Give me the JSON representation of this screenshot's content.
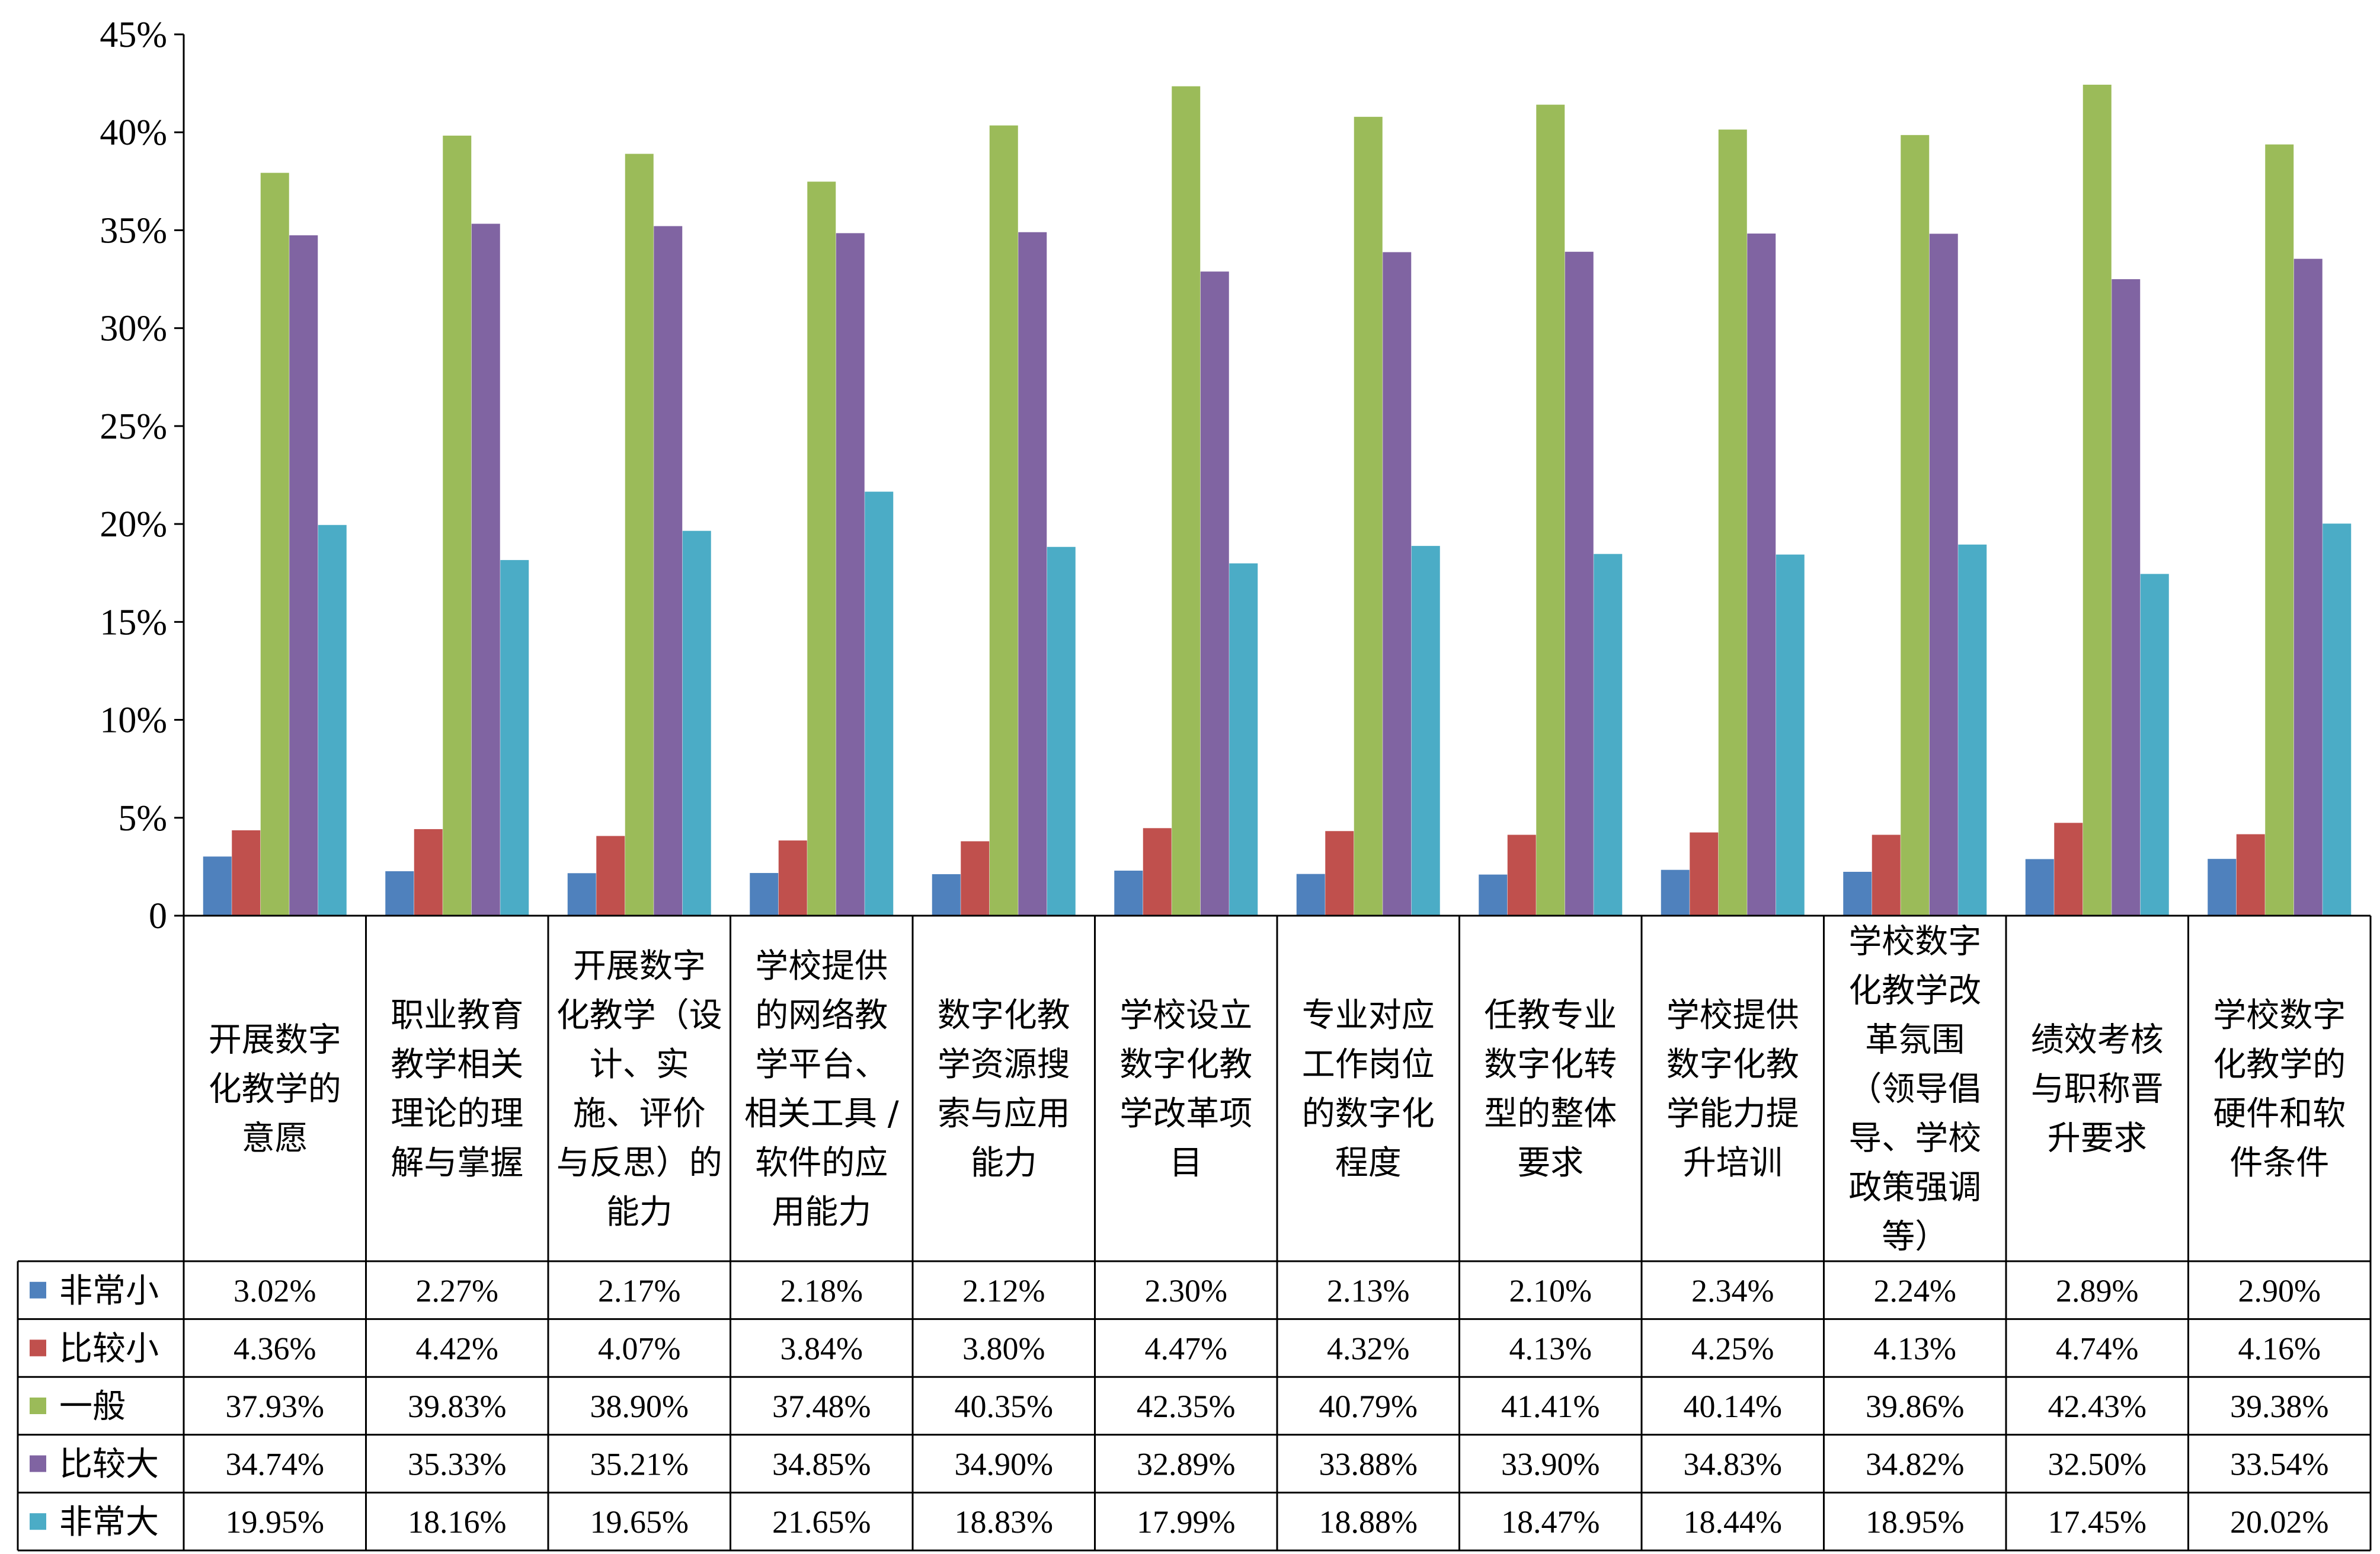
{
  "chart_data": {
    "type": "bar",
    "categories": [
      [
        "开展数字",
        "化教学的",
        "意愿"
      ],
      [
        "职业教育",
        "教学相关",
        "理论的理",
        "解与掌握"
      ],
      [
        "开展数字",
        "化教学（设",
        "计、实",
        "施、评价",
        "与反思）的",
        "能力"
      ],
      [
        "学校提供",
        "的网络教",
        "学平台、",
        "相关工具 /",
        "软件的应",
        "用能力"
      ],
      [
        "数字化教",
        "学资源搜",
        "索与应用",
        "能力"
      ],
      [
        "学校设立",
        "数字化教",
        "学改革项",
        "目"
      ],
      [
        "专业对应",
        "工作岗位",
        "的数字化",
        "程度"
      ],
      [
        "任教专业",
        "数字化转",
        "型的整体",
        "要求"
      ],
      [
        "学校提供",
        "数字化教",
        "学能力提",
        "升培训"
      ],
      [
        "学校数字",
        "化教学改",
        "革氛围",
        "（领导倡",
        "导、学校",
        "政策强调",
        "等）"
      ],
      [
        "绩效考核",
        "与职称晋",
        "升要求"
      ],
      [
        "学校数字",
        "化教学的",
        "硬件和软",
        "件条件"
      ]
    ],
    "series": [
      {
        "name": "非常小",
        "color": "#4f81bd",
        "values": [
          3.02,
          2.27,
          2.17,
          2.18,
          2.12,
          2.3,
          2.13,
          2.1,
          2.34,
          2.24,
          2.89,
          2.9
        ],
        "labels": [
          "3.02%",
          "2.27%",
          "2.17%",
          "2.18%",
          "2.12%",
          "2.30%",
          "2.13%",
          "2.10%",
          "2.34%",
          "2.24%",
          "2.89%",
          "2.90%"
        ]
      },
      {
        "name": "比较小",
        "color": "#c0504d",
        "values": [
          4.36,
          4.42,
          4.07,
          3.84,
          3.8,
          4.47,
          4.32,
          4.13,
          4.25,
          4.13,
          4.74,
          4.16
        ],
        "labels": [
          "4.36%",
          "4.42%",
          "4.07%",
          "3.84%",
          "3.80%",
          "4.47%",
          "4.32%",
          "4.13%",
          "4.25%",
          "4.13%",
          "4.74%",
          "4.16%"
        ]
      },
      {
        "name": "一般",
        "color": "#9bbb59",
        "values": [
          37.93,
          39.83,
          38.9,
          37.48,
          40.35,
          42.35,
          40.79,
          41.41,
          40.14,
          39.86,
          42.43,
          39.38
        ],
        "labels": [
          "37.93%",
          "39.83%",
          "38.90%",
          "37.48%",
          "40.35%",
          "42.35%",
          "40.79%",
          "41.41%",
          "40.14%",
          "39.86%",
          "42.43%",
          "39.38%"
        ]
      },
      {
        "name": "比较大",
        "color": "#8064a2",
        "values": [
          34.74,
          35.33,
          35.21,
          34.85,
          34.9,
          32.89,
          33.88,
          33.9,
          34.83,
          34.82,
          32.5,
          33.54
        ],
        "labels": [
          "34.74%",
          "35.33%",
          "35.21%",
          "34.85%",
          "34.90%",
          "32.89%",
          "33.88%",
          "33.90%",
          "34.83%",
          "34.82%",
          "32.50%",
          "33.54%"
        ]
      },
      {
        "name": "非常大",
        "color": "#4bacc6",
        "values": [
          19.95,
          18.16,
          19.65,
          21.65,
          18.83,
          17.99,
          18.88,
          18.47,
          18.44,
          18.95,
          17.45,
          20.02
        ],
        "labels": [
          "19.95%",
          "18.16%",
          "19.65%",
          "21.65%",
          "18.83%",
          "17.99%",
          "18.88%",
          "18.47%",
          "18.44%",
          "18.95%",
          "17.45%",
          "20.02%"
        ]
      }
    ],
    "y_ticks": [
      "0",
      "5%",
      "10%",
      "15%",
      "20%",
      "25%",
      "30%",
      "35%",
      "40%",
      "45%"
    ],
    "ylim": [
      0,
      45
    ],
    "grid": false,
    "legend": "data-table"
  }
}
